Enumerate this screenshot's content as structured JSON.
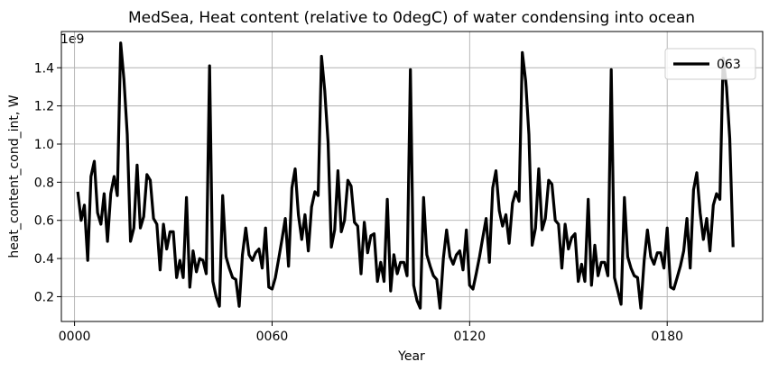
{
  "chart_data": {
    "type": "line",
    "title": "MedSea, Heat content (relative to 0degC) of water condensing into ocean",
    "xlabel": "Year",
    "ylabel": "heat_content_cond_int, W",
    "offset_text": "1e9",
    "xlim": [
      -4,
      209
    ],
    "ylim": [
      0.07,
      1.59
    ],
    "x_ticks": [
      0,
      60,
      120,
      180
    ],
    "x_tick_labels": [
      "0000",
      "0060",
      "0120",
      "0180"
    ],
    "y_ticks": [
      0.2,
      0.4,
      0.6,
      0.8,
      1.0,
      1.2,
      1.4
    ],
    "y_tick_labels": [
      "0.2",
      "0.4",
      "0.6",
      "0.8",
      "1.0",
      "1.2",
      "1.4"
    ],
    "grid": true,
    "legend": {
      "position": "top-right",
      "entries": [
        "063"
      ]
    },
    "series": [
      {
        "name": "063",
        "color": "#000000",
        "x": [
          1,
          2,
          3,
          4,
          5,
          6,
          7,
          8,
          9,
          10,
          11,
          12,
          13,
          14,
          15,
          16,
          17,
          18,
          19,
          20,
          21,
          22,
          23,
          24,
          25,
          26,
          27,
          28,
          29,
          30,
          31,
          32,
          33,
          34,
          35,
          36,
          37,
          38,
          39,
          40,
          41,
          42,
          43,
          44,
          45,
          46,
          47,
          48,
          49,
          50,
          51,
          52,
          53,
          54,
          55,
          56,
          57,
          58,
          59,
          60,
          61,
          62,
          63,
          64,
          65,
          66,
          67,
          68,
          69,
          70,
          71,
          72,
          73,
          74,
          75,
          76,
          77,
          78,
          79,
          80,
          81,
          82,
          83,
          84,
          85,
          86,
          87,
          88,
          89,
          90,
          91,
          92,
          93,
          94,
          95,
          96,
          97,
          98,
          99,
          100,
          101,
          102,
          103,
          104,
          105,
          106,
          107,
          108,
          109,
          110,
          111,
          112,
          113,
          114,
          115,
          116,
          117,
          118,
          119,
          120,
          121,
          122,
          123,
          124,
          125,
          126,
          127,
          128,
          129,
          130,
          131,
          132,
          133,
          134,
          135,
          136,
          137,
          138,
          139,
          140,
          141,
          142,
          143,
          144,
          145,
          146,
          147,
          148,
          149,
          150,
          151,
          152,
          153,
          154,
          155,
          156,
          157,
          158,
          159,
          160,
          161,
          162,
          163,
          164,
          165,
          166,
          167,
          168,
          169,
          170,
          171,
          172,
          173,
          174,
          175,
          176,
          177,
          178,
          179,
          180,
          181,
          182,
          183,
          184,
          185,
          186,
          187,
          188,
          189,
          190,
          191,
          192,
          193,
          194,
          195,
          196,
          197,
          198,
          199,
          200
        ],
        "values": [
          0.75,
          0.6,
          0.68,
          0.39,
          0.83,
          0.91,
          0.64,
          0.58,
          0.74,
          0.49,
          0.74,
          0.83,
          0.73,
          1.53,
          1.34,
          1.05,
          0.49,
          0.56,
          0.89,
          0.56,
          0.62,
          0.84,
          0.81,
          0.61,
          0.58,
          0.34,
          0.58,
          0.45,
          0.54,
          0.54,
          0.3,
          0.39,
          0.3,
          0.72,
          0.25,
          0.44,
          0.33,
          0.4,
          0.39,
          0.32,
          1.41,
          0.28,
          0.2,
          0.15,
          0.73,
          0.41,
          0.35,
          0.3,
          0.29,
          0.15,
          0.42,
          0.56,
          0.42,
          0.39,
          0.43,
          0.45,
          0.35,
          0.56,
          0.25,
          0.24,
          0.3,
          0.4,
          0.5,
          0.61,
          0.36,
          0.77,
          0.87,
          0.63,
          0.5,
          0.63,
          0.44,
          0.67,
          0.75,
          0.73,
          1.46,
          1.28,
          1.01,
          0.46,
          0.55,
          0.86,
          0.54,
          0.6,
          0.81,
          0.78,
          0.59,
          0.57,
          0.32,
          0.59,
          0.43,
          0.52,
          0.53,
          0.28,
          0.38,
          0.28,
          0.71,
          0.23,
          0.42,
          0.32,
          0.38,
          0.38,
          0.31,
          1.39,
          0.26,
          0.18,
          0.14,
          0.72,
          0.42,
          0.36,
          0.31,
          0.29,
          0.14,
          0.4,
          0.55,
          0.41,
          0.37,
          0.42,
          0.44,
          0.34,
          0.55,
          0.26,
          0.24,
          0.32,
          0.41,
          0.51,
          0.61,
          0.38,
          0.77,
          0.86,
          0.65,
          0.57,
          0.63,
          0.48,
          0.69,
          0.75,
          0.7,
          1.48,
          1.33,
          1.05,
          0.47,
          0.56,
          0.87,
          0.55,
          0.61,
          0.81,
          0.79,
          0.6,
          0.58,
          0.35,
          0.58,
          0.45,
          0.51,
          0.53,
          0.28,
          0.37,
          0.28,
          0.71,
          0.26,
          0.47,
          0.31,
          0.38,
          0.38,
          0.31,
          1.39,
          0.3,
          0.23,
          0.16,
          0.72,
          0.41,
          0.35,
          0.31,
          0.3,
          0.14,
          0.39,
          0.55,
          0.41,
          0.37,
          0.43,
          0.43,
          0.35,
          0.56,
          0.25,
          0.24,
          0.3,
          0.36,
          0.44,
          0.61,
          0.35,
          0.76,
          0.85,
          0.64,
          0.5,
          0.61,
          0.44,
          0.68,
          0.74,
          0.71,
          1.45,
          1.3,
          1.03,
          0.46
        ]
      }
    ]
  }
}
